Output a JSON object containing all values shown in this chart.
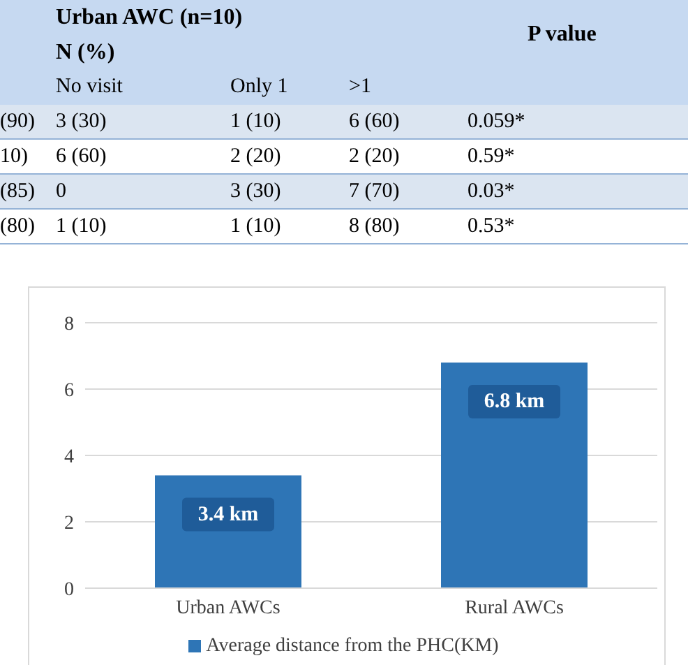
{
  "chart_data": [
    {
      "type": "other",
      "annotations": [
        "Urban AWC (n=10)",
        "N (%)",
        "P value",
        "No visit",
        "Only 1",
        ">1",
        "(90)",
        "3 (30)",
        "1 (10)",
        "6 (60)",
        "0.059*",
        "10)",
        "6 (60)",
        "2 (20)",
        "2 (20)",
        "0.59*",
        "(85)",
        "0",
        "3 (30)",
        "7 (70)",
        "0.03*",
        "(80)",
        "1 (10)",
        "1 (10)",
        "8 (80)",
        "0.53*"
      ]
    },
    {
      "type": "bar",
      "categories": [
        "Urban AWCs",
        "Rural AWCs"
      ],
      "series": [
        {
          "name": "Average distance from the PHC(KM)",
          "color": "#2e75b6",
          "values": [
            3.4,
            6.8
          ],
          "value_labels": [
            "3.4 km",
            "6.8 km"
          ]
        }
      ],
      "ylim": [
        0,
        8
      ],
      "yticks": [
        0,
        2,
        4,
        6,
        8
      ],
      "grid": "y",
      "legend": "bottom"
    }
  ]
}
